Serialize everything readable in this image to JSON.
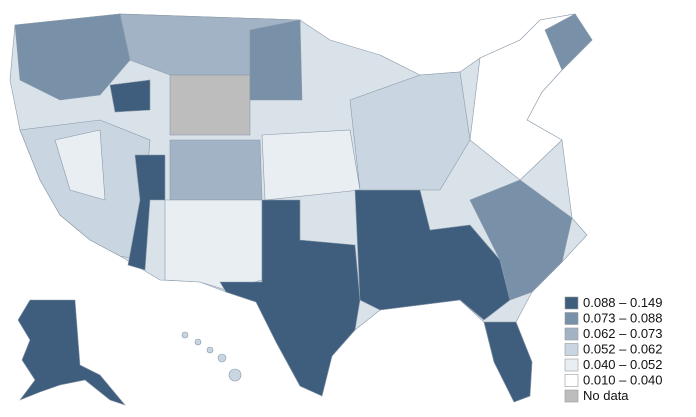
{
  "legend": {
    "items": [
      {
        "label": "0.088 – 0.149",
        "color": "#3f5e7d"
      },
      {
        "label": "0.073 – 0.088",
        "color": "#7890a8"
      },
      {
        "label": "0.062 – 0.073",
        "color": "#a2b3c5"
      },
      {
        "label": "0.052 – 0.062",
        "color": "#c9d5e0"
      },
      {
        "label": "0.040 – 0.052",
        "color": "#e9eef3"
      },
      {
        "label": "0.010 – 0.040",
        "color": "#ffffff"
      },
      {
        "label": "No data",
        "color": "#bdbdbd"
      }
    ]
  }
}
